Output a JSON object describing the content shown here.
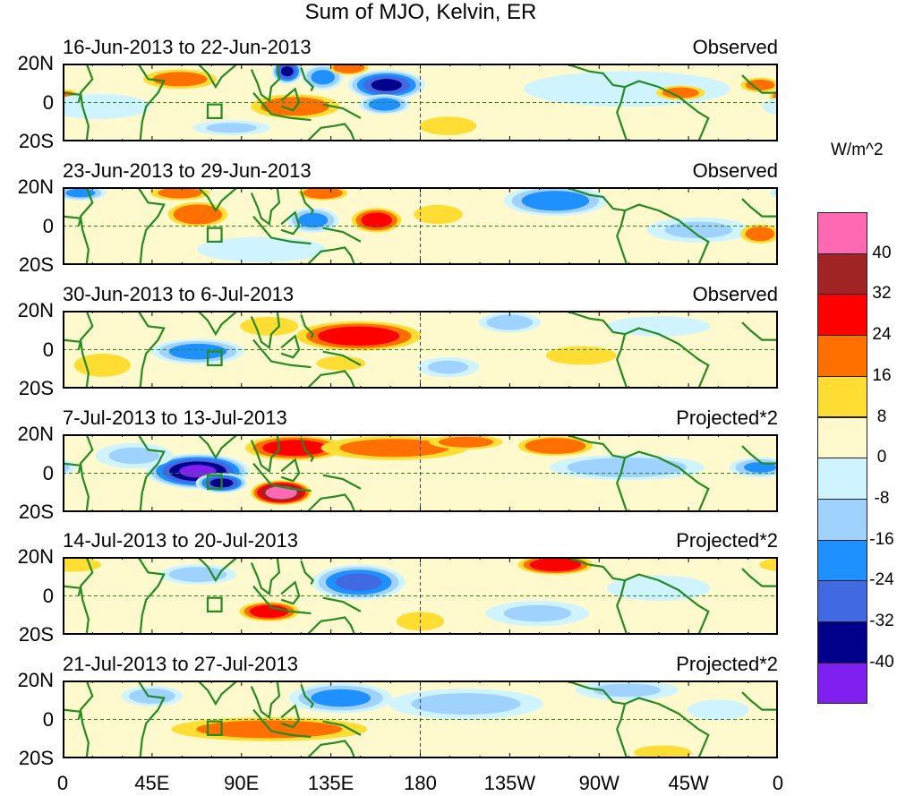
{
  "chart_data": {
    "type": "heatmap",
    "title": "Sum of MJO, Kelvin, ER",
    "units": "W/m^2",
    "x_ticks": [
      "0",
      "45E",
      "90E",
      "135E",
      "180",
      "135W",
      "90W",
      "45W",
      "0"
    ],
    "y_ticks": [
      "20N",
      "0",
      "20S"
    ],
    "lon_range": [
      0,
      360
    ],
    "lat_range": [
      -20,
      20
    ],
    "colorbar": {
      "levels": [
        "40",
        "32",
        "24",
        "16",
        "8",
        "0",
        "-8",
        "-16",
        "-24",
        "-32",
        "-40"
      ],
      "colors": [
        "#ff69b4",
        "#a02424",
        "#ff0000",
        "#ff7000",
        "#ffdd33",
        "#fffacd",
        "#d0f4ff",
        "#a0d2ff",
        "#1e90ff",
        "#4169e1",
        "#00008b",
        "#8020f0"
      ]
    },
    "panels": [
      {
        "period": "16-Jun-2013 to 22-Jun-2013",
        "status": "Observed",
        "anomalies": [
          [
            59,
            12,
            15,
            4,
            18
          ],
          [
            117,
            -2,
            18,
            5,
            20
          ],
          [
            113,
            16,
            6,
            5,
            -34
          ],
          [
            131,
            13,
            8,
            5,
            -20
          ],
          [
            144,
            18,
            8,
            3,
            22
          ],
          [
            163,
            9,
            15,
            6,
            -34
          ],
          [
            162,
            -1,
            10,
            4,
            -22
          ],
          [
            194,
            -12,
            12,
            4,
            10
          ],
          [
            284,
            7,
            40,
            7,
            -6
          ],
          [
            311,
            5,
            10,
            3,
            18
          ],
          [
            351,
            9,
            8,
            3,
            18
          ],
          [
            2,
            3,
            5,
            3,
            18
          ],
          [
            18,
            -2,
            20,
            5,
            -6
          ],
          [
            85,
            -13,
            15,
            3,
            -10
          ]
        ]
      },
      {
        "period": "23-Jun-2013 to 29-Jun-2013",
        "status": "Observed",
        "anomalies": [
          [
            68,
            6,
            12,
            5,
            24
          ],
          [
            59,
            17,
            12,
            3,
            18
          ],
          [
            131,
            17,
            10,
            3,
            22
          ],
          [
            126,
            3,
            10,
            5,
            -20
          ],
          [
            158,
            3,
            10,
            5,
            26
          ],
          [
            189,
            6,
            10,
            4,
            16
          ],
          [
            248,
            13,
            20,
            6,
            -24
          ],
          [
            9,
            17,
            10,
            3,
            -20
          ],
          [
            320,
            -2,
            20,
            5,
            -10
          ],
          [
            351,
            -4,
            8,
            4,
            18
          ],
          [
            100,
            -12,
            25,
            5,
            -8
          ]
        ]
      },
      {
        "period": "30-Jun-2013 to 6-Jul-2013",
        "status": "Observed",
        "anomalies": [
          [
            149,
            7,
            25,
            6,
            28
          ],
          [
            68,
            -1,
            18,
            5,
            -22
          ],
          [
            104,
            12,
            12,
            4,
            14
          ],
          [
            225,
            14,
            12,
            4,
            -14
          ],
          [
            194,
            -9,
            12,
            4,
            -10
          ],
          [
            261,
            -3,
            15,
            4,
            10
          ],
          [
            140,
            -7,
            10,
            3,
            16
          ],
          [
            300,
            12,
            20,
            4,
            -8
          ],
          [
            20,
            -8,
            12,
            5,
            10
          ]
        ]
      },
      {
        "period": "7-Jul-2013 to 13-Jul-2013",
        "status": "Projected*2",
        "anomalies": [
          [
            68,
            1,
            20,
            7,
            -42
          ],
          [
            80,
            -5,
            10,
            4,
            -36
          ],
          [
            110,
            -10,
            12,
            5,
            44
          ],
          [
            117,
            13,
            20,
            5,
            28
          ],
          [
            167,
            13,
            30,
            5,
            18
          ],
          [
            203,
            16,
            15,
            3,
            18
          ],
          [
            248,
            14,
            15,
            4,
            24
          ],
          [
            284,
            3,
            30,
            5,
            -16
          ],
          [
            351,
            3,
            12,
            4,
            -18
          ],
          [
            36,
            9,
            15,
            5,
            -10
          ]
        ]
      },
      {
        "period": "14-Jul-2013 to 20-Jul-2013",
        "status": "Projected*2",
        "anomalies": [
          [
            248,
            16,
            15,
            4,
            30
          ],
          [
            149,
            7,
            18,
            7,
            -28
          ],
          [
            104,
            -8,
            12,
            4,
            28
          ],
          [
            68,
            11,
            15,
            4,
            -14
          ],
          [
            180,
            -13,
            10,
            4,
            12
          ],
          [
            239,
            -9,
            20,
            5,
            -10
          ],
          [
            5,
            16,
            12,
            3,
            12
          ],
          [
            300,
            4,
            20,
            5,
            -6
          ]
        ]
      },
      {
        "period": "21-Jul-2013 to 27-Jul-2013",
        "status": "Projected*2",
        "anomalies": [
          [
            104,
            -5,
            40,
            5,
            18
          ],
          [
            140,
            11,
            20,
            6,
            -20
          ],
          [
            203,
            8,
            30,
            6,
            -12
          ],
          [
            45,
            12,
            12,
            4,
            -14
          ],
          [
            284,
            15,
            20,
            4,
            -10
          ],
          [
            302,
            -17,
            12,
            3,
            14
          ],
          [
            330,
            5,
            12,
            4,
            -8
          ]
        ]
      }
    ]
  }
}
